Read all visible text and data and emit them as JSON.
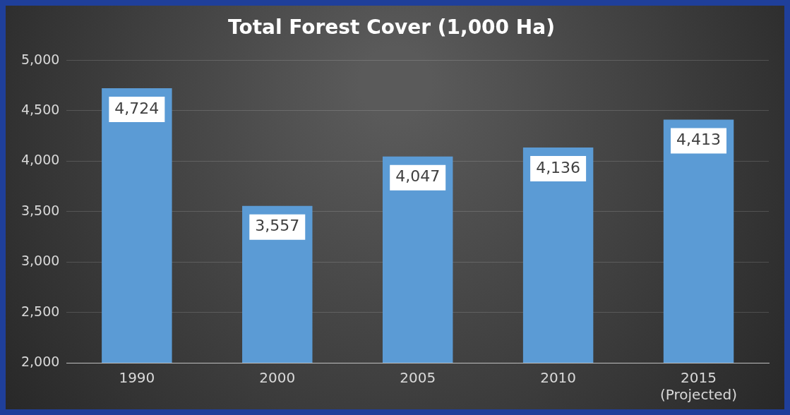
{
  "chart_data": {
    "type": "bar",
    "title": "Total Forest Cover (1,000 Ha)",
    "categories": [
      "1990",
      "2000",
      "2005",
      "2010",
      "2015\n(Projected)"
    ],
    "values": [
      4724,
      3557,
      4047,
      4136,
      4413
    ],
    "value_labels": [
      "4,724",
      "3,557",
      "4,047",
      "4,136",
      "4,413"
    ],
    "color": "#5b9bd5",
    "ylim": [
      2000,
      5000
    ],
    "yticks": [
      {
        "value": 2000,
        "label": "2,000"
      },
      {
        "value": 2500,
        "label": "2,500"
      },
      {
        "value": 3000,
        "label": "3,000"
      },
      {
        "value": 3500,
        "label": "3,500"
      },
      {
        "value": 4000,
        "label": "4,000"
      },
      {
        "value": 4500,
        "label": "4,500"
      },
      {
        "value": 5000,
        "label": "5,000"
      }
    ],
    "grid": "y",
    "legend": false
  }
}
